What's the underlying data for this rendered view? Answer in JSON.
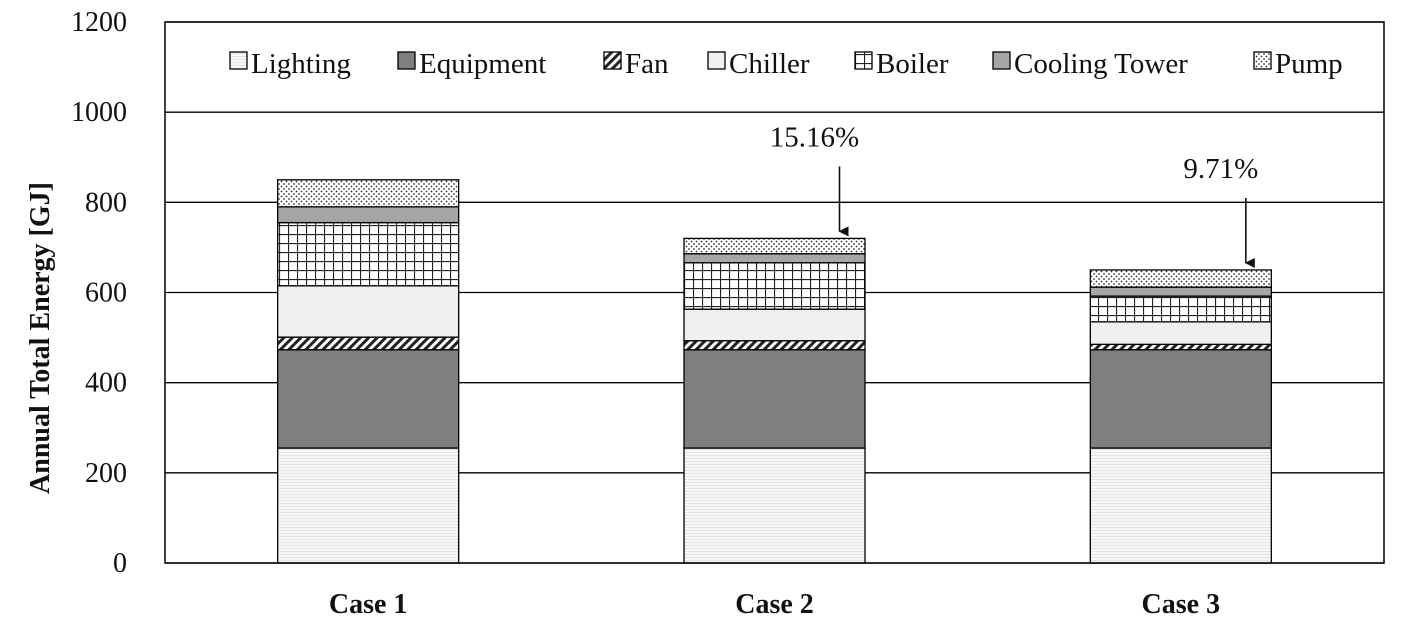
{
  "chart_data": {
    "type": "bar",
    "stacked": true,
    "ylabel": "Annual Total Energy [GJ]",
    "xlabel": "",
    "ylim": [
      0,
      1200
    ],
    "yticks": [
      0,
      200,
      400,
      600,
      800,
      1000,
      1200
    ],
    "categories": [
      "Case 1",
      "Case 2",
      "Case 3"
    ],
    "grid": true,
    "legend_position": "top",
    "series": [
      {
        "name": "Lighting",
        "values": [
          255,
          255,
          255
        ],
        "color": "#f4f4f4",
        "pattern": "hlines"
      },
      {
        "name": "Equipment",
        "values": [
          218,
          218,
          218
        ],
        "color": "#7f7f7f",
        "pattern": "solid"
      },
      {
        "name": "Fan",
        "values": [
          28,
          20,
          12
        ],
        "color": "#ffffff",
        "pattern": "diag"
      },
      {
        "name": "Chiller",
        "values": [
          114,
          70,
          50
        ],
        "color": "#f0f0f0",
        "pattern": "solid"
      },
      {
        "name": "Boiler",
        "values": [
          140,
          103,
          57
        ],
        "color": "#ffffff",
        "pattern": "grid"
      },
      {
        "name": "Cooling Tower",
        "values": [
          35,
          20,
          20
        ],
        "color": "#a6a6a6",
        "pattern": "solid"
      },
      {
        "name": "Pump",
        "values": [
          60,
          34,
          38
        ],
        "color": "#ffffff",
        "pattern": "dots"
      }
    ],
    "annotations": [
      {
        "text": "15.16%",
        "category": "Case 2"
      },
      {
        "text": "9.71%",
        "category": "Case 3"
      }
    ]
  }
}
